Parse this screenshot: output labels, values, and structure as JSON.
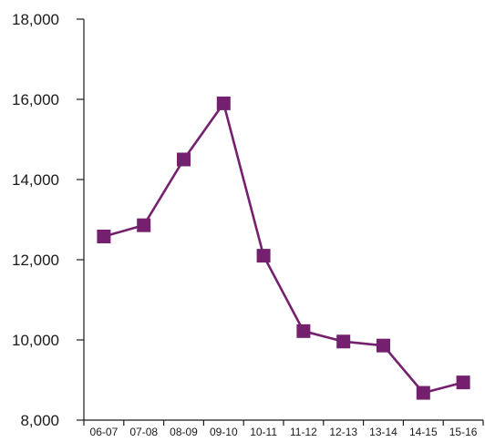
{
  "chart_data": {
    "type": "line",
    "title": "",
    "xlabel": "",
    "ylabel": "",
    "categories": [
      "06-07",
      "07-08",
      "08-09",
      "09-10",
      "10-11",
      "11-12",
      "12-13",
      "13-14",
      "14-15",
      "15-16"
    ],
    "series": [
      {
        "values": [
          12580,
          12860,
          14500,
          15900,
          12100,
          10220,
          9960,
          9860,
          8680,
          8940
        ]
      }
    ],
    "ylim": [
      8000,
      18000
    ],
    "yticks": [
      8000,
      10000,
      12000,
      14000,
      16000,
      18000
    ],
    "ytick_labels": [
      "8,000",
      "10,000",
      "12,000",
      "14,000",
      "16,000",
      "18,000"
    ],
    "grid": false,
    "legend": "none",
    "colors": {
      "series": "#74206f",
      "axis": "#1a1a1a"
    }
  }
}
